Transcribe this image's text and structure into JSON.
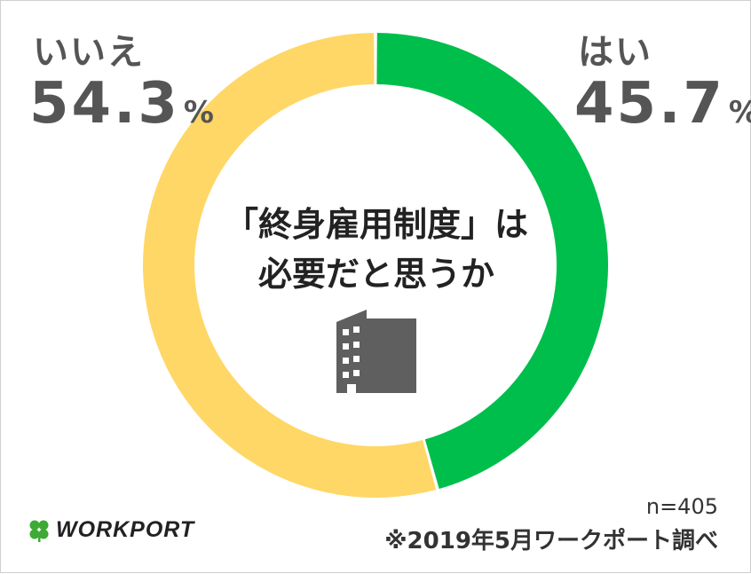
{
  "chart_data": {
    "type": "pie",
    "style": "donut",
    "title": "「終身雇用制度」は必要だと思うか",
    "title_lines": [
      "「終身雇用制度」は",
      "必要だと思うか"
    ],
    "slices": [
      {
        "label": "はい",
        "value": 45.7,
        "display": "45.7",
        "color": "#00BE4C"
      },
      {
        "label": "いいえ",
        "value": 54.3,
        "display": "54.3",
        "color": "#FFD766"
      }
    ],
    "unit": "%",
    "sample_size": "n=405",
    "source": "※2019年5月ワークポート調べ"
  },
  "brand": {
    "name": "WORKPORT",
    "logo_icon": "clover-icon",
    "logo_color": "#3DAA35"
  },
  "icons": {
    "center": "building-icon"
  },
  "colors": {
    "text": "#555555",
    "title": "#222222",
    "ring_gap": "#ffffff"
  }
}
